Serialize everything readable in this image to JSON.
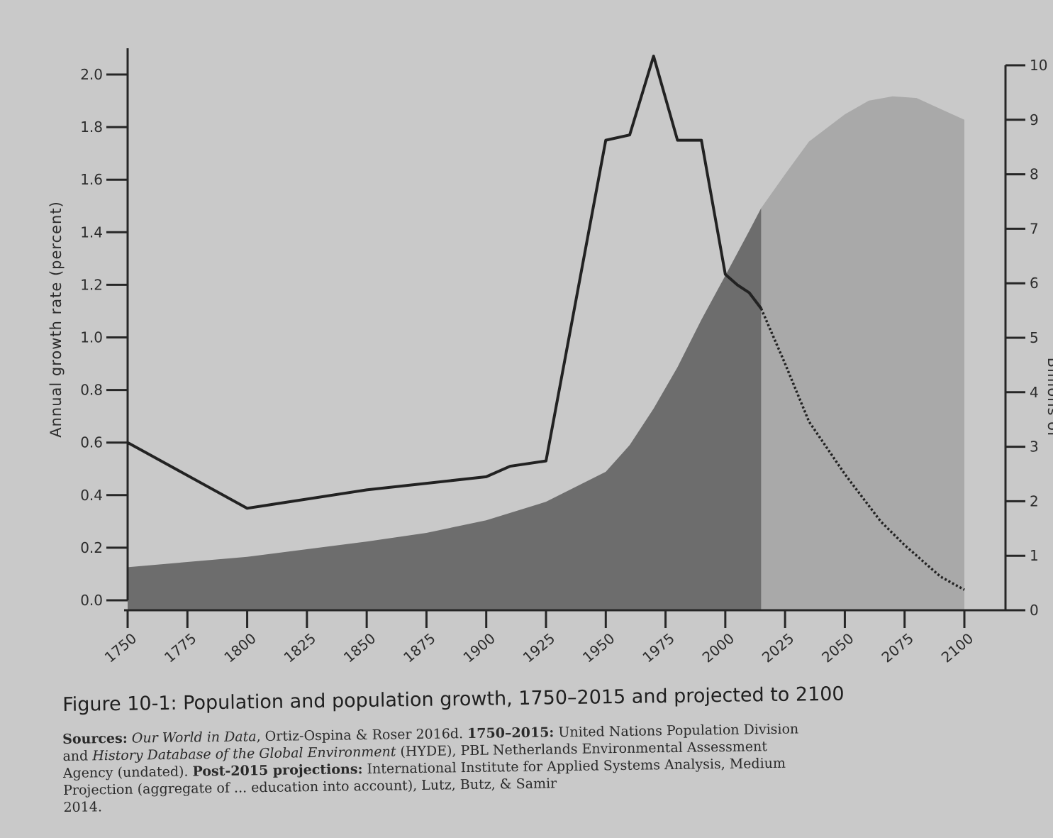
{
  "chart_data": {
    "type": "line",
    "x": [
      1750,
      1800,
      1850,
      1900,
      1910,
      1925,
      1950,
      1960,
      1970,
      1980,
      1990,
      2000,
      2010,
      2015,
      2020,
      2030,
      2050,
      2075,
      2100
    ],
    "xticks": [
      1750,
      1775,
      1800,
      1825,
      1850,
      1875,
      1900,
      1925,
      1950,
      1975,
      2000,
      2025,
      2050,
      2075,
      2100
    ],
    "xlim": [
      1750,
      2100
    ],
    "ylabel": "Annual growth rate (percent)",
    "ylim": [
      0.0,
      2.0
    ],
    "yticks": [
      "0.0",
      "0.2",
      "0.4",
      "0.6",
      "0.8",
      "1.0",
      "1.2",
      "1.4",
      "1.6",
      "1.8",
      "2.0"
    ],
    "y2label": "Billions of",
    "y2lim": [
      0,
      10
    ],
    "y2ticks": [
      "0",
      "1",
      "2",
      "3",
      "4",
      "5",
      "6",
      "7",
      "8",
      "9",
      "10"
    ],
    "series": [
      {
        "kind": "growth_rate_historical",
        "style": "solid",
        "color": "#222222",
        "x": [
          1750,
          1800,
          1850,
          1900,
          1910,
          1925,
          1950,
          1960,
          1970,
          1980,
          1990,
          2000,
          2005,
          2010,
          2015
        ],
        "values": [
          0.6,
          0.35,
          0.42,
          0.47,
          0.51,
          0.53,
          1.75,
          1.77,
          2.07,
          1.75,
          1.75,
          1.24,
          1.2,
          1.17,
          1.11
        ]
      },
      {
        "kind": "growth_rate_projected",
        "style": "dotted",
        "color": "#222222",
        "x": [
          2015,
          2025,
          2035,
          2050,
          2065,
          2075,
          2090,
          2100
        ],
        "values": [
          1.11,
          0.9,
          0.68,
          0.48,
          0.3,
          0.21,
          0.09,
          0.04
        ]
      },
      {
        "kind": "population_historical",
        "style": "area",
        "color": "#6d6d6d",
        "x": [
          1750,
          1800,
          1850,
          1875,
          1900,
          1925,
          1950,
          1960,
          1970,
          1980,
          1990,
          2000,
          2010,
          2015
        ],
        "values": [
          0.79,
          0.98,
          1.26,
          1.42,
          1.65,
          1.99,
          2.54,
          3.03,
          3.7,
          4.46,
          5.33,
          6.14,
          6.96,
          7.38
        ]
      },
      {
        "kind": "population_projected",
        "style": "area",
        "color": "#a9a9a9",
        "x": [
          2015,
          2025,
          2035,
          2050,
          2060,
          2070,
          2080,
          2090,
          2100
        ],
        "values": [
          7.38,
          8.0,
          8.6,
          9.1,
          9.35,
          9.43,
          9.4,
          9.2,
          9.0
        ]
      }
    ]
  },
  "caption": {
    "title": "Figure 10-1: Population and population growth, 1750–2015 and projected to 2100"
  },
  "sources": {
    "line1_label": "Sources:",
    "line1_source_italic": "Our World in Data",
    "line1_rest": ", Ortiz-Ospina & Roser 2016d. ",
    "line1_bold": "1750–2015:",
    "line1_end": " United Nations Population Division",
    "line2_start": "and ",
    "line2_italic": "History Database of the Global Environment",
    "line2_end": " (HYDE), PBL Netherlands Environmental Assessment",
    "line3_start": "Agency (undated). ",
    "line3_bold": "Post-2015 projections:",
    "line3_end": " International Institute for Applied Systems Analysis, Medium",
    "line4": "Projection (aggregate of ... education into account), Lutz, Butz, & Samir",
    "line5": "2014."
  }
}
